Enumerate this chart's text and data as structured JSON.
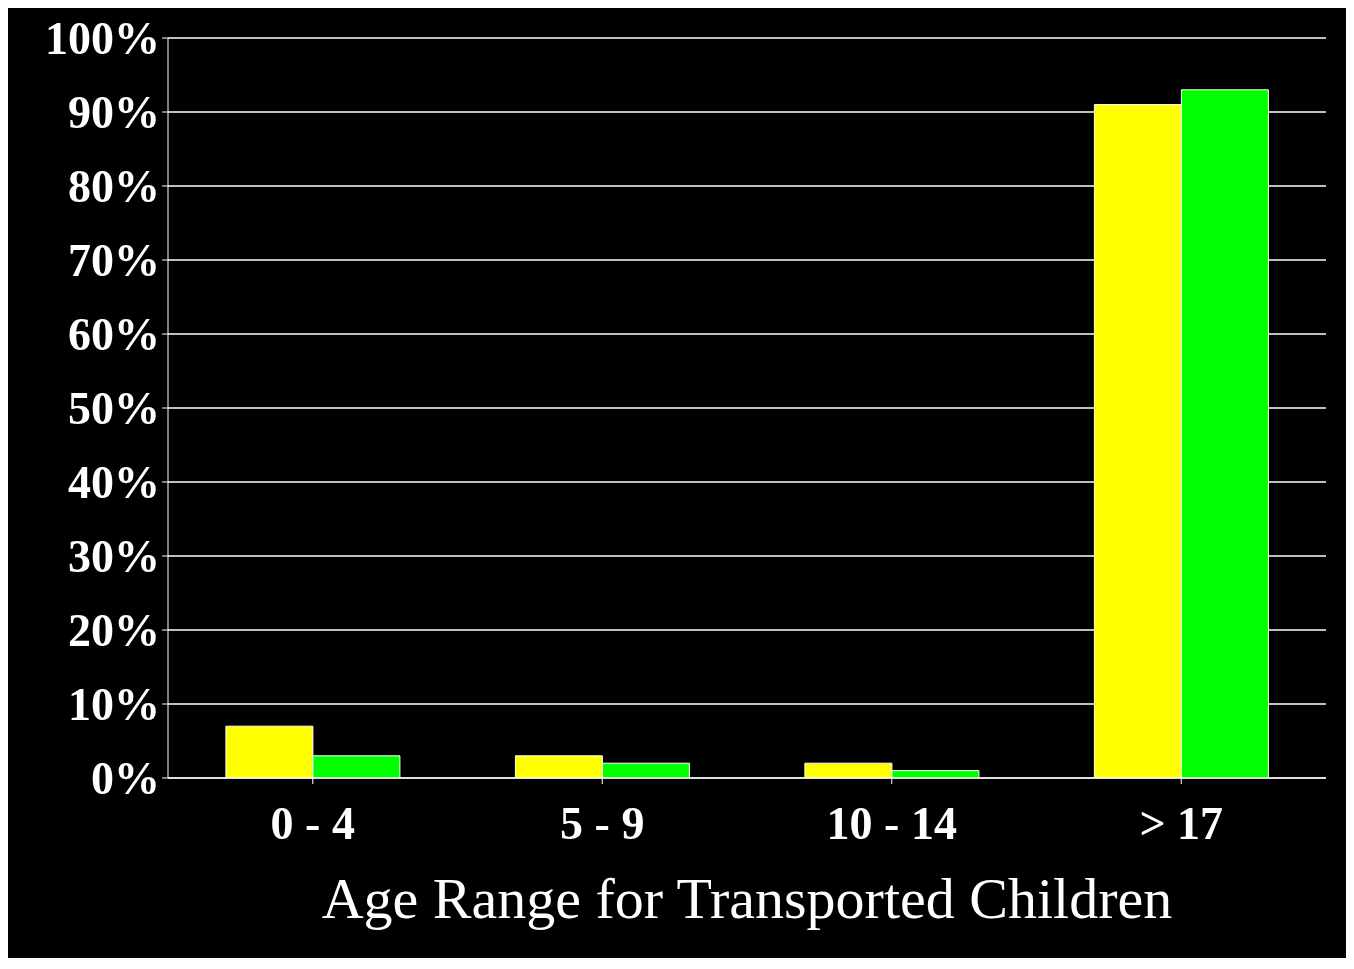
{
  "chart_data": {
    "type": "bar",
    "categories": [
      "0 - 4",
      "5 - 9",
      "10 - 14",
      "> 17"
    ],
    "series": [
      {
        "color": "#ffff00",
        "values": [
          7,
          3,
          2,
          91
        ]
      },
      {
        "color": "#00ff00",
        "values": [
          3,
          2,
          1,
          93
        ]
      }
    ],
    "xlabel": "Age Range for Transported Children",
    "ylim": [
      0,
      100
    ],
    "yticks": [
      {
        "value": 0,
        "label": "0%"
      },
      {
        "value": 10,
        "label": "10%"
      },
      {
        "value": 20,
        "label": "20%"
      },
      {
        "value": 30,
        "label": "30%"
      },
      {
        "value": 40,
        "label": "40%"
      },
      {
        "value": 50,
        "label": "50%"
      },
      {
        "value": 60,
        "label": "60%"
      },
      {
        "value": 70,
        "label": "70%"
      },
      {
        "value": 80,
        "label": "80%"
      },
      {
        "value": 90,
        "label": "90%"
      },
      {
        "value": 100,
        "label": "100%"
      }
    ],
    "grid": "y"
  }
}
